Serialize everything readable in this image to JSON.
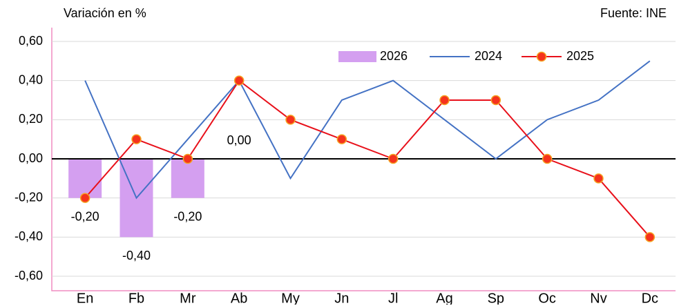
{
  "chart_data": {
    "type": "bar-line",
    "y_label": "Variación en %",
    "source": "Fuente: INE",
    "categories": [
      "En",
      "Fb",
      "Mr",
      "Ab",
      "My",
      "Jn",
      "Jl",
      "Ag",
      "Sp",
      "Oc",
      "Nv",
      "Dc"
    ],
    "series": [
      {
        "name": "2026",
        "type": "bar",
        "color": "#d49ff0",
        "values": [
          -0.2,
          -0.4,
          -0.2,
          0,
          null,
          null,
          null,
          null,
          null,
          null,
          null,
          null
        ],
        "value_labels": [
          "-0,20",
          "-0,40",
          "-0,20",
          "0,00",
          null,
          null,
          null,
          null,
          null,
          null,
          null,
          null
        ]
      },
      {
        "name": "2024",
        "type": "line",
        "color": "#4472c4",
        "values": [
          0.4,
          -0.2,
          0.1,
          0.4,
          -0.1,
          0.3,
          0.4,
          0.2,
          0,
          0.2,
          0.3,
          0.5
        ]
      },
      {
        "name": "2025",
        "type": "line",
        "color": "#e8101a",
        "marker_color": "#f5331d",
        "values": [
          -0.2,
          0.1,
          0,
          0.4,
          0.2,
          0.1,
          0,
          0.3,
          0.3,
          0,
          -0.1,
          -0.4
        ]
      }
    ],
    "ylim": [
      -0.6,
      0.6
    ],
    "yticks": [
      {
        "value": -0.6,
        "label": "-0,60"
      },
      {
        "value": -0.4,
        "label": "-0,40"
      },
      {
        "value": -0.2,
        "label": "-0,20"
      },
      {
        "value": 0,
        "label": "0,00"
      },
      {
        "value": 0.2,
        "label": "0,20"
      },
      {
        "value": 0.4,
        "label": "0,40"
      },
      {
        "value": 0.6,
        "label": "0,60"
      }
    ],
    "grid": true,
    "legend": "top-right"
  }
}
